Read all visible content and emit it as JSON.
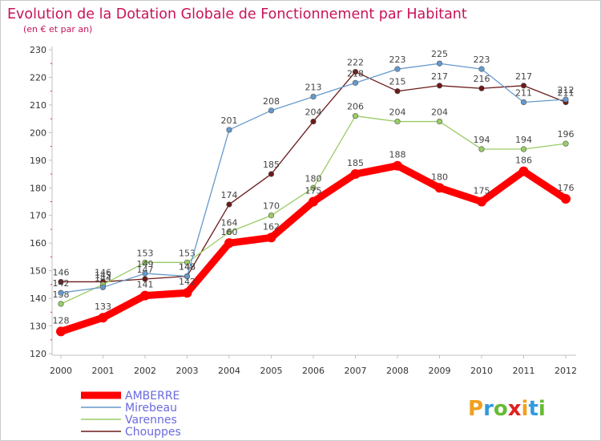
{
  "chart_data": {
    "type": "line",
    "title": "Evolution de la Dotation Globale de Fonctionnement par Habitant",
    "subtitle": "(en € et par an)",
    "xlabel": "",
    "ylabel": "",
    "categories": [
      "2000",
      "2001",
      "2002",
      "2003",
      "2004",
      "2005",
      "2006",
      "2007",
      "2008",
      "2009",
      "2010",
      "2011",
      "2012"
    ],
    "yticks": [
      "120",
      "130",
      "140",
      "150",
      "160",
      "170",
      "180",
      "190",
      "200",
      "210",
      "220",
      "230"
    ],
    "ylim": [
      120,
      230
    ],
    "grid": false,
    "series": [
      {
        "name": "AMBERRE",
        "color": "#ff0000",
        "legend_color": "#6a6adf",
        "labels": [
          "128",
          "133",
          "141",
          "142",
          "160",
          "162",
          "175",
          "185",
          "188",
          "180",
          "175",
          "186",
          "176"
        ],
        "values": [
          128,
          133,
          141,
          142,
          160,
          162,
          175,
          185,
          188,
          180,
          175,
          186,
          176
        ]
      },
      {
        "name": "Mirebeau",
        "color": "#6699cc",
        "legend_color": "#6a6adf",
        "labels": [
          "142",
          "144",
          "149",
          "148",
          "201",
          "208",
          "213",
          "218",
          "223",
          "225",
          "223",
          "211",
          "212"
        ],
        "values": [
          142,
          144,
          149,
          148,
          201,
          208,
          213,
          218,
          223,
          225,
          223,
          211,
          212
        ]
      },
      {
        "name": "Varennes",
        "color": "#99cc66",
        "legend_color": "#6a6adf",
        "labels": [
          "138",
          "145",
          "153",
          "153",
          "164",
          "170",
          "180",
          "206",
          "204",
          "204",
          "194",
          "194",
          "196"
        ],
        "values": [
          138,
          145,
          153,
          153,
          164,
          170,
          180,
          206,
          204,
          204,
          194,
          194,
          196
        ]
      },
      {
        "name": "Chouppes",
        "color": "#6b1a1a",
        "legend_color": "#6a6adf",
        "labels": [
          "146",
          "146",
          "147",
          "148",
          "174",
          "185",
          "204",
          "222",
          "215",
          "217",
          "216",
          "217",
          "211"
        ],
        "values": [
          146,
          146,
          147,
          148,
          174,
          185,
          204,
          222,
          215,
          217,
          216,
          217,
          211
        ]
      }
    ]
  },
  "brand": {
    "logo_text": "Proxiti"
  }
}
